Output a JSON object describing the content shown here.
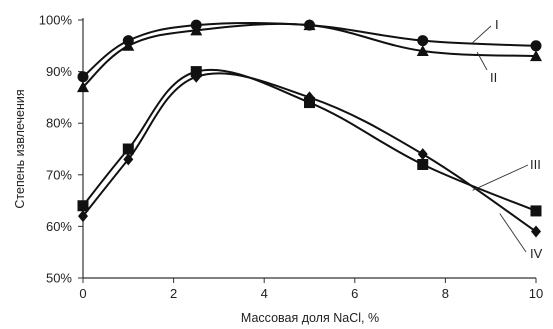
{
  "chart_data": {
    "type": "line",
    "xlabel": "Массовая доля NaCl, %",
    "ylabel": "Степень извлечения",
    "xlim": [
      0,
      10
    ],
    "ylim": [
      50,
      100
    ],
    "x_ticks": [
      "0",
      "2",
      "4",
      "6",
      "8",
      "10"
    ],
    "y_ticks": [
      "50%",
      "60%",
      "70%",
      "80%",
      "90%",
      "100%"
    ],
    "grid": false,
    "legend": "inline labels at right",
    "series": [
      {
        "name": "I",
        "marker": "circle",
        "x": [
          0,
          1,
          2.5,
          5,
          7.5,
          10
        ],
        "y": [
          89,
          96,
          99,
          99,
          96,
          95
        ]
      },
      {
        "name": "II",
        "marker": "triangle",
        "x": [
          0,
          1,
          2.5,
          5,
          7.5,
          10
        ],
        "y": [
          87,
          95,
          98,
          99,
          94,
          93
        ]
      },
      {
        "name": "III",
        "marker": "square",
        "x": [
          0,
          1,
          2.5,
          5,
          7.5,
          10
        ],
        "y": [
          64,
          75,
          90,
          84,
          72,
          63
        ]
      },
      {
        "name": "IV",
        "marker": "diamond",
        "x": [
          0,
          1,
          2.5,
          5,
          7.5,
          10
        ],
        "y": [
          62,
          73,
          89,
          85,
          74,
          59
        ]
      }
    ]
  }
}
